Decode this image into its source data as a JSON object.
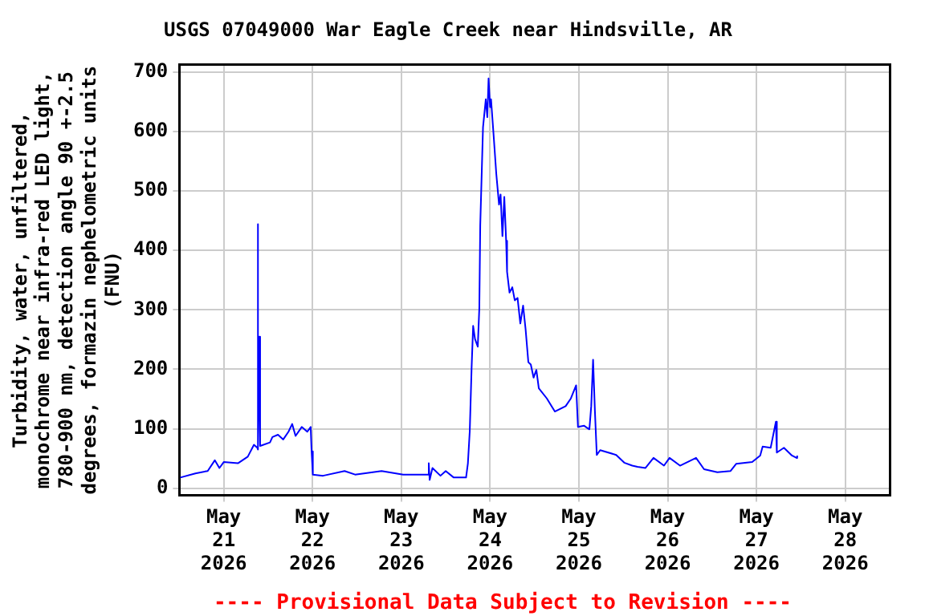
{
  "chart_data": {
    "type": "line",
    "title": "USGS 07049000 War Eagle Creek near Hindsville, AR",
    "ylabel": "Turbidity, water, unfiltered,\nmonochrome near infra-red LED light,\n780-900 nm, detection angle 90 +-2.5\ndegrees, formazin nephelometric units\n(FNU)",
    "annotations": [
      "---- Provisional Data Subject to Revision ----"
    ],
    "x": [
      "2026-05-20T12:15",
      "2026-05-20T16:20",
      "2026-05-20T19:40",
      "2026-05-20T21:35",
      "2026-05-20T22:50",
      "2026-05-21T00:00",
      "2026-05-21T03:50",
      "2026-05-21T06:30",
      "2026-05-21T08:10",
      "2026-05-21T09:05",
      "2026-05-21T09:10",
      "2026-05-21T09:20",
      "2026-05-21T09:35",
      "2026-05-21T09:50",
      "2026-05-21T12:30",
      "2026-05-21T13:10",
      "2026-05-21T14:40",
      "2026-05-21T16:05",
      "2026-05-21T17:30",
      "2026-05-21T18:30",
      "2026-05-21T19:25",
      "2026-05-21T21:05",
      "2026-05-21T22:35",
      "2026-05-21T23:30",
      "2026-05-21T23:45",
      "2026-05-22T00:05",
      "2026-05-22T02:50",
      "2026-05-22T08:40",
      "2026-05-22T11:30",
      "2026-05-22T18:40",
      "2026-05-23T00:30",
      "2026-05-23T07:00",
      "2026-05-23T07:25",
      "2026-05-23T07:40",
      "2026-05-23T08:25",
      "2026-05-23T10:35",
      "2026-05-23T12:00",
      "2026-05-23T14:10",
      "2026-05-23T17:30",
      "2026-05-23T18:00",
      "2026-05-23T18:30",
      "2026-05-23T19:00",
      "2026-05-23T19:25",
      "2026-05-23T19:55",
      "2026-05-23T20:40",
      "2026-05-23T21:05",
      "2026-05-23T21:20",
      "2026-05-23T22:05",
      "2026-05-23T22:50",
      "2026-05-23T23:15",
      "2026-05-23T23:35",
      "2026-05-24T00:00",
      "2026-05-24T00:15",
      "2026-05-24T01:00",
      "2026-05-24T01:40",
      "2026-05-24T02:25",
      "2026-05-24T02:50",
      "2026-05-24T03:20",
      "2026-05-24T03:50",
      "2026-05-24T04:20",
      "2026-05-24T04:35",
      "2026-05-24T05:15",
      "2026-05-24T06:00",
      "2026-05-24T06:40",
      "2026-05-24T07:25",
      "2026-05-24T08:10",
      "2026-05-24T08:55",
      "2026-05-24T09:35",
      "2026-05-24T10:20",
      "2026-05-24T11:00",
      "2026-05-24T11:45",
      "2026-05-24T12:30",
      "2026-05-24T13:10",
      "2026-05-24T15:20",
      "2026-05-24T17:30",
      "2026-05-24T20:25",
      "2026-05-24T21:50",
      "2026-05-24T23:15",
      "2026-05-24T23:45",
      "2026-05-25T01:25",
      "2026-05-25T02:50",
      "2026-05-25T03:20",
      "2026-05-25T03:50",
      "2026-05-25T04:20",
      "2026-05-25T04:50",
      "2026-05-25T05:45",
      "2026-05-25T10:05",
      "2026-05-25T12:15",
      "2026-05-25T14:25",
      "2026-05-25T15:50",
      "2026-05-25T18:00",
      "2026-05-25T20:10",
      "2026-05-25T23:00",
      "2026-05-26T00:30",
      "2026-05-26T03:20",
      "2026-05-26T07:40",
      "2026-05-26T09:50",
      "2026-05-26T13:25",
      "2026-05-26T17:00",
      "2026-05-26T18:30",
      "2026-05-26T22:50",
      "2026-05-27T01:00",
      "2026-05-27T01:40",
      "2026-05-27T03:50",
      "2026-05-27T05:15",
      "2026-05-27T05:30",
      "2026-05-27T07:25",
      "2026-05-27T09:35",
      "2026-05-27T10:50",
      "2026-05-27T11:00"
    ],
    "series": [
      {
        "color": "#0000ff",
        "values": [
          18,
          25,
          29,
          47,
          34,
          44,
          42,
          53,
          73,
          68,
          444,
          65,
          255,
          71,
          77,
          86,
          90,
          82,
          95,
          108,
          88,
          103,
          95,
          103,
          62,
          23,
          21,
          29,
          23,
          29,
          23,
          23,
          42,
          14,
          34,
          21,
          29,
          18,
          18,
          42,
          96,
          203,
          273,
          251,
          238,
          303,
          442,
          607,
          654,
          624,
          689,
          641,
          654,
          589,
          529,
          477,
          494,
          424,
          490,
          416,
          364,
          329,
          338,
          316,
          320,
          277,
          307,
          268,
          212,
          208,
          186,
          199,
          168,
          151,
          129,
          138,
          151,
          173,
          103,
          105,
          99,
          138,
          216,
          129,
          56,
          64,
          56,
          43,
          38,
          36,
          34,
          51,
          38,
          51,
          38,
          51,
          32,
          27,
          29,
          41,
          44,
          55,
          70,
          68,
          112,
          60,
          68,
          55,
          51,
          55
        ]
      }
    ],
    "xlim": [
      "2026-05-20T12:00",
      "2026-05-28T12:00"
    ],
    "xticks": [
      {
        "value": "2026-05-21",
        "label": "May\n21\n2026"
      },
      {
        "value": "2026-05-22",
        "label": "May\n22\n2026"
      },
      {
        "value": "2026-05-23",
        "label": "May\n23\n2026"
      },
      {
        "value": "2026-05-24",
        "label": "May\n24\n2026"
      },
      {
        "value": "2026-05-25",
        "label": "May\n25\n2026"
      },
      {
        "value": "2026-05-26",
        "label": "May\n26\n2026"
      },
      {
        "value": "2026-05-27",
        "label": "May\n27\n2026"
      },
      {
        "value": "2026-05-28",
        "label": "May\n28\n2026"
      }
    ],
    "ylim": [
      -12,
      712
    ],
    "yticks": [
      0,
      100,
      200,
      300,
      400,
      500,
      600,
      700
    ],
    "grid": true,
    "legend": false,
    "marker": "none",
    "line_style": "solid"
  }
}
